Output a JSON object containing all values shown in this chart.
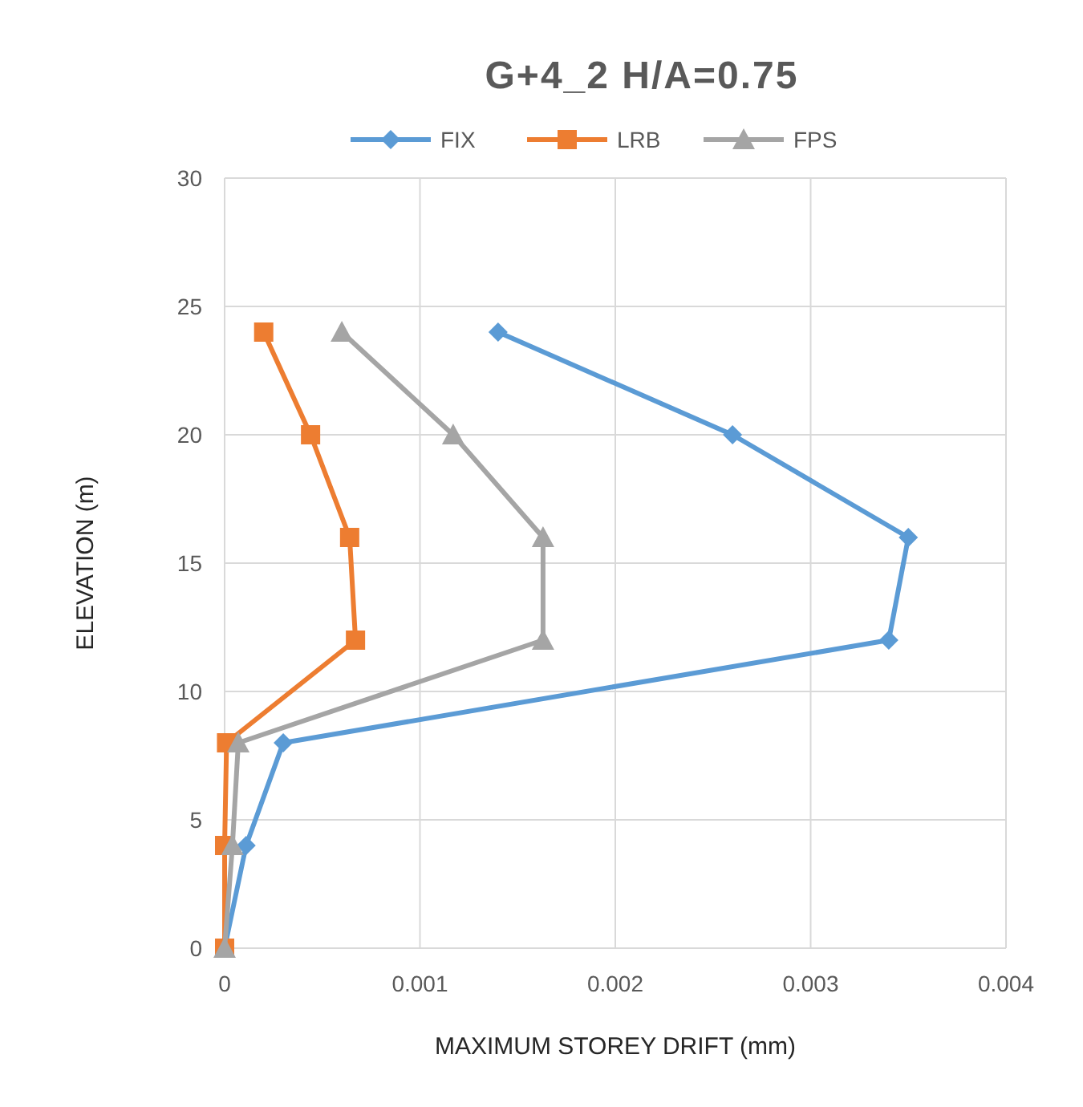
{
  "chart_data": {
    "type": "line",
    "title": "G+4_2 H/A=0.75",
    "xlabel": "MAXIMUM  STOREY DRIFT (mm)",
    "ylabel": "ELEVATION (m)",
    "xlim": [
      0,
      0.004
    ],
    "xticks": [
      0,
      0.001,
      0.002,
      0.003,
      0.004
    ],
    "ylim": [
      0,
      30
    ],
    "yticks": [
      0,
      5,
      10,
      15,
      20,
      25,
      30
    ],
    "grid": true,
    "legend": "top",
    "series": [
      {
        "name": "FIX",
        "color": "#5b9bd5",
        "marker": "diamond",
        "x": [
          0.0014,
          0.0026,
          0.0035,
          0.0034,
          0.0003,
          0.00011,
          0
        ],
        "values": [
          24,
          20,
          16,
          12,
          8,
          4,
          0
        ]
      },
      {
        "name": "LRB",
        "color": "#ed7d31",
        "marker": "square",
        "x": [
          0.0002,
          0.00044,
          0.00064,
          0.00067,
          1e-05,
          0,
          0
        ],
        "values": [
          24,
          20,
          16,
          12,
          8,
          4,
          0
        ]
      },
      {
        "name": "FPS",
        "color": "#a5a5a5",
        "marker": "triangle",
        "x": [
          0.0006,
          0.00117,
          0.00163,
          0.00163,
          7e-05,
          4e-05,
          0
        ],
        "values": [
          24,
          20,
          16,
          12,
          8,
          4,
          0
        ]
      }
    ]
  }
}
